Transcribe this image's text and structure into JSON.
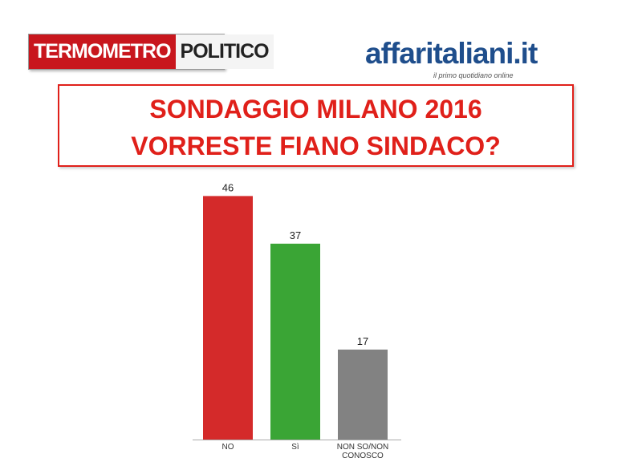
{
  "header": {
    "left_logo": [
      "TERMOMETRO",
      "POLITICO"
    ],
    "right_logo": "affaritaliani.it",
    "right_tagline": "il primo quotidiano online"
  },
  "chart_data": {
    "type": "bar",
    "title": [
      "SONDAGGIO MILANO 2016",
      "VORRESTE FIANO SINDACO?"
    ],
    "categories": [
      "NO",
      "Sì",
      "NON SO/NON CONOSCO"
    ],
    "values": [
      46,
      37,
      17
    ],
    "colors": [
      "#d42a2a",
      "#3aa535",
      "#828282"
    ]
  }
}
